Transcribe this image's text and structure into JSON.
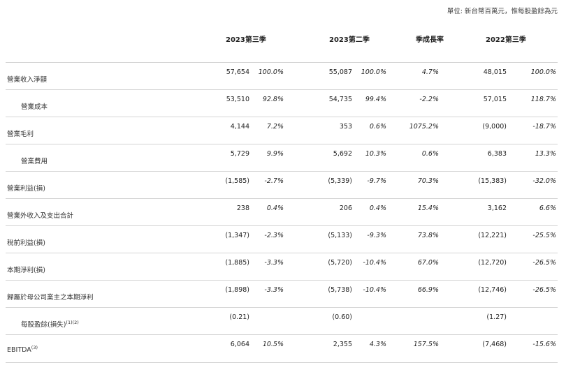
{
  "unit_note": "單位: 新台幣百萬元，惟每股盈餘為元",
  "headers": {
    "col1": "2023第三季",
    "col2": "2023第二季",
    "col3": "季成長率",
    "col4": "2022第三季"
  },
  "rows": [
    {
      "label": "營業收入淨額",
      "c1n": "57,654",
      "c1p": "100.0%",
      "c2n": "55,087",
      "c2p": "100.0%",
      "c3p": "4.7%",
      "c4n": "48,015",
      "c4p": "100.0%"
    },
    {
      "label": "營業成本",
      "c1n": "53,510",
      "c1p": "92.8%",
      "c2n": "54,735",
      "c2p": "99.4%",
      "c3p": "-2.2%",
      "c4n": "57,015",
      "c4p": "118.7%"
    },
    {
      "label": "營業毛利",
      "c1n": "4,144",
      "c1p": "7.2%",
      "c2n": "353",
      "c2p": "0.6%",
      "c3p": "1075.2%",
      "c4n": "(9,000)",
      "c4p": "-18.7%"
    },
    {
      "label": "營業費用",
      "c1n": "5,729",
      "c1p": "9.9%",
      "c2n": "5,692",
      "c2p": "10.3%",
      "c3p": "0.6%",
      "c4n": "6,383",
      "c4p": "13.3%"
    },
    {
      "label": "營業利益(損)",
      "c1n": "(1,585)",
      "c1p": "-2.7%",
      "c2n": "(5,339)",
      "c2p": "-9.7%",
      "c3p": "70.3%",
      "c4n": "(15,383)",
      "c4p": "-32.0%"
    },
    {
      "label": "營業外收入及支出合計",
      "c1n": "238",
      "c1p": "0.4%",
      "c2n": "206",
      "c2p": "0.4%",
      "c3p": "15.4%",
      "c4n": "3,162",
      "c4p": "6.6%"
    },
    {
      "label": "稅前利益(損)",
      "c1n": "(1,347)",
      "c1p": "-2.3%",
      "c2n": "(5,133)",
      "c2p": "-9.3%",
      "c3p": "73.8%",
      "c4n": "(12,221)",
      "c4p": "-25.5%"
    },
    {
      "label": "本期淨利(損)",
      "c1n": "(1,885)",
      "c1p": "-3.3%",
      "c2n": "(5,720)",
      "c2p": "-10.4%",
      "c3p": "67.0%",
      "c4n": "(12,720)",
      "c4p": "-26.5%"
    },
    {
      "label": "歸屬於母公司業主之本期淨利",
      "c1n": "(1,898)",
      "c1p": "-3.3%",
      "c2n": "(5,738)",
      "c2p": "-10.4%",
      "c3p": "66.9%",
      "c4n": "(12,746)",
      "c4p": "-26.5%"
    },
    {
      "label": "每股盈餘(損失)",
      "sup": "(1)(2)",
      "c1n": "(0.21)",
      "c1p": "",
      "c2n": "(0.60)",
      "c2p": "",
      "c3p": "",
      "c4n": "(1.27)",
      "c4p": ""
    },
    {
      "label": "EBITDA",
      "sup": "(3)",
      "c1n": "6,064",
      "c1p": "10.5%",
      "c2n": "2,355",
      "c2p": "4.3%",
      "c3p": "157.5%",
      "c4n": "(7,468)",
      "c4p": "-15.6%"
    }
  ]
}
